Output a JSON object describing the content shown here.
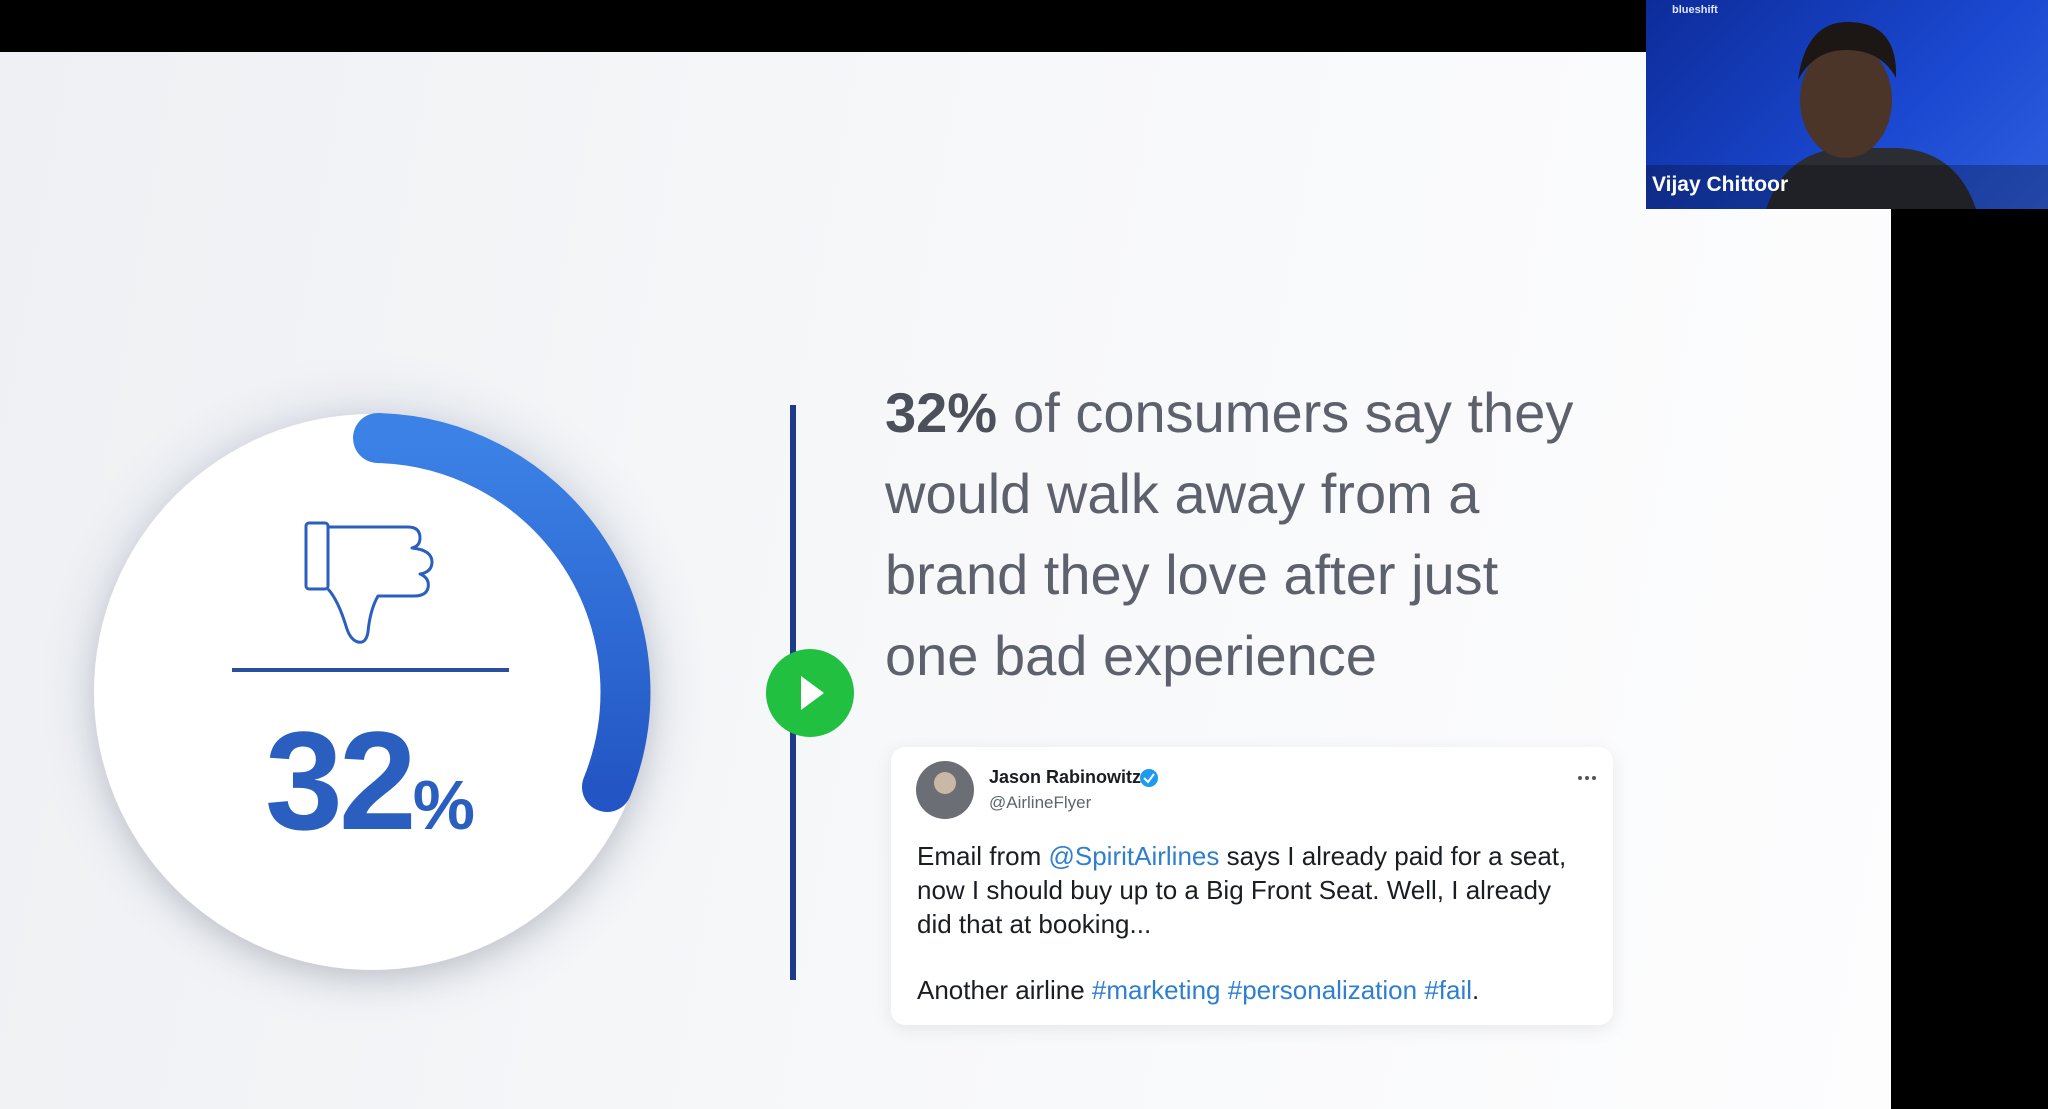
{
  "video_tile": {
    "brand": "blueshift",
    "participant": "Vijay Chittoor"
  },
  "slide": {
    "stat": {
      "number": "32",
      "unit": "%"
    },
    "headline": {
      "emphasis": "32%",
      "lines": [
        "of consumers say they",
        "would walk away from a",
        "brand they love after just",
        "one bad experience"
      ]
    },
    "tweet": {
      "name": "Jason Rabinowitz",
      "handle": "@AirlineFlyer",
      "body": {
        "before": "Email from",
        "mention": "@SpiritAirlines",
        "after": "says I already paid for a seat, now I should buy up to a Big Front Seat. Well, I already did that at booking..."
      },
      "footer": {
        "text": "Another airline",
        "tags": [
          "#marketing",
          "#personalization",
          "#fail"
        ],
        "end": "."
      }
    }
  }
}
